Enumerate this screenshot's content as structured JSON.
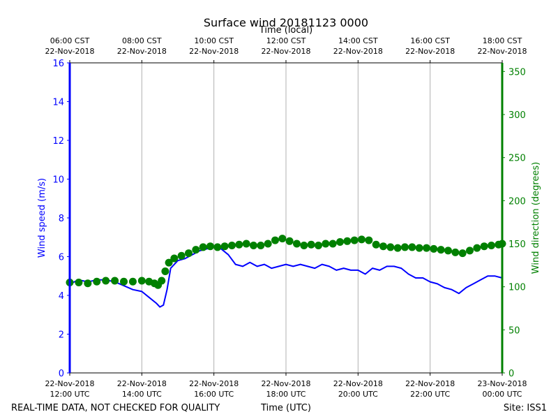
{
  "chart_data": {
    "type": "line",
    "title": "Surface wind 20181123 0000",
    "xlabel_bottom": "Time (UTC)",
    "xlabel_top": "Time (local)",
    "ylabel_left": "Wind speed (m/s)",
    "ylabel_right": "Wind direction (degrees)",
    "footer_left": "REAL-TIME DATA, NOT CHECKED FOR QUALITY",
    "footer_right": "Site: ISS1",
    "x_unit": "hours since 22-Nov-2018 12:00 UTC",
    "xlim": [
      0,
      12
    ],
    "ylim_left": [
      0,
      16
    ],
    "ylim_right": [
      0,
      360
    ],
    "grid": "vertical",
    "bottom_ticks": [
      {
        "x": 0,
        "line1": "22-Nov-2018",
        "line2": "12:00 UTC"
      },
      {
        "x": 2,
        "line1": "22-Nov-2018",
        "line2": "14:00 UTC"
      },
      {
        "x": 4,
        "line1": "22-Nov-2018",
        "line2": "16:00 UTC"
      },
      {
        "x": 6,
        "line1": "22-Nov-2018",
        "line2": "18:00 UTC"
      },
      {
        "x": 8,
        "line1": "22-Nov-2018",
        "line2": "20:00 UTC"
      },
      {
        "x": 10,
        "line1": "22-Nov-2018",
        "line2": "22:00 UTC"
      },
      {
        "x": 12,
        "line1": "23-Nov-2018",
        "line2": "00:00 UTC"
      }
    ],
    "top_ticks": [
      {
        "x": 0,
        "line1": "06:00 CST",
        "line2": "22-Nov-2018"
      },
      {
        "x": 2,
        "line1": "08:00 CST",
        "line2": "22-Nov-2018"
      },
      {
        "x": 4,
        "line1": "10:00 CST",
        "line2": "22-Nov-2018"
      },
      {
        "x": 6,
        "line1": "12:00 CST",
        "line2": "22-Nov-2018"
      },
      {
        "x": 8,
        "line1": "14:00 CST",
        "line2": "22-Nov-2018"
      },
      {
        "x": 10,
        "line1": "16:00 CST",
        "line2": "22-Nov-2018"
      },
      {
        "x": 12,
        "line1": "18:00 CST",
        "line2": "22-Nov-2018"
      }
    ],
    "left_ticks": [
      0,
      2,
      4,
      6,
      8,
      10,
      12,
      14,
      16
    ],
    "right_ticks": [
      0,
      50,
      100,
      150,
      200,
      250,
      300,
      350
    ],
    "series": [
      {
        "name": "Wind speed",
        "axis": "left",
        "color": "#0000ff",
        "style": "line",
        "points": [
          [
            0.0,
            4.6
          ],
          [
            0.25,
            4.8
          ],
          [
            0.5,
            4.7
          ],
          [
            0.75,
            4.8
          ],
          [
            1.0,
            4.8
          ],
          [
            1.25,
            4.7
          ],
          [
            1.5,
            4.5
          ],
          [
            1.75,
            4.3
          ],
          [
            2.0,
            4.2
          ],
          [
            2.2,
            3.9
          ],
          [
            2.4,
            3.6
          ],
          [
            2.5,
            3.4
          ],
          [
            2.6,
            3.5
          ],
          [
            2.7,
            4.3
          ],
          [
            2.8,
            5.4
          ],
          [
            3.0,
            5.8
          ],
          [
            3.2,
            5.9
          ],
          [
            3.4,
            6.1
          ],
          [
            3.6,
            6.3
          ],
          [
            3.8,
            6.4
          ],
          [
            4.0,
            6.5
          ],
          [
            4.2,
            6.4
          ],
          [
            4.4,
            6.1
          ],
          [
            4.6,
            5.6
          ],
          [
            4.8,
            5.5
          ],
          [
            5.0,
            5.7
          ],
          [
            5.2,
            5.5
          ],
          [
            5.4,
            5.6
          ],
          [
            5.6,
            5.4
          ],
          [
            5.8,
            5.5
          ],
          [
            6.0,
            5.6
          ],
          [
            6.2,
            5.5
          ],
          [
            6.4,
            5.6
          ],
          [
            6.6,
            5.5
          ],
          [
            6.8,
            5.4
          ],
          [
            7.0,
            5.6
          ],
          [
            7.2,
            5.5
          ],
          [
            7.4,
            5.3
          ],
          [
            7.6,
            5.4
          ],
          [
            7.8,
            5.3
          ],
          [
            8.0,
            5.3
          ],
          [
            8.2,
            5.1
          ],
          [
            8.4,
            5.4
          ],
          [
            8.6,
            5.3
          ],
          [
            8.8,
            5.5
          ],
          [
            9.0,
            5.5
          ],
          [
            9.2,
            5.4
          ],
          [
            9.4,
            5.1
          ],
          [
            9.6,
            4.9
          ],
          [
            9.8,
            4.9
          ],
          [
            10.0,
            4.7
          ],
          [
            10.2,
            4.6
          ],
          [
            10.4,
            4.4
          ],
          [
            10.6,
            4.3
          ],
          [
            10.8,
            4.1
          ],
          [
            11.0,
            4.4
          ],
          [
            11.2,
            4.6
          ],
          [
            11.4,
            4.8
          ],
          [
            11.6,
            5.0
          ],
          [
            11.8,
            5.0
          ],
          [
            12.0,
            4.9
          ]
        ]
      },
      {
        "name": "Wind direction",
        "axis": "right",
        "color": "#008000",
        "style": "markers",
        "points": [
          [
            0.0,
            105
          ],
          [
            0.25,
            105
          ],
          [
            0.5,
            104
          ],
          [
            0.75,
            106
          ],
          [
            1.0,
            107
          ],
          [
            1.25,
            107
          ],
          [
            1.5,
            106
          ],
          [
            1.75,
            106
          ],
          [
            2.0,
            107
          ],
          [
            2.2,
            106
          ],
          [
            2.35,
            104
          ],
          [
            2.45,
            102
          ],
          [
            2.55,
            107
          ],
          [
            2.65,
            118
          ],
          [
            2.75,
            128
          ],
          [
            2.9,
            133
          ],
          [
            3.1,
            136
          ],
          [
            3.3,
            139
          ],
          [
            3.5,
            143
          ],
          [
            3.7,
            146
          ],
          [
            3.9,
            147
          ],
          [
            4.1,
            146
          ],
          [
            4.3,
            147
          ],
          [
            4.5,
            148
          ],
          [
            4.7,
            149
          ],
          [
            4.9,
            150
          ],
          [
            5.1,
            148
          ],
          [
            5.3,
            148
          ],
          [
            5.5,
            150
          ],
          [
            5.7,
            154
          ],
          [
            5.9,
            156
          ],
          [
            6.1,
            153
          ],
          [
            6.3,
            150
          ],
          [
            6.5,
            148
          ],
          [
            6.7,
            149
          ],
          [
            6.9,
            148
          ],
          [
            7.1,
            150
          ],
          [
            7.3,
            150
          ],
          [
            7.5,
            152
          ],
          [
            7.7,
            153
          ],
          [
            7.9,
            154
          ],
          [
            8.1,
            155
          ],
          [
            8.3,
            154
          ],
          [
            8.5,
            149
          ],
          [
            8.7,
            147
          ],
          [
            8.9,
            146
          ],
          [
            9.1,
            145
          ],
          [
            9.3,
            146
          ],
          [
            9.5,
            146
          ],
          [
            9.7,
            145
          ],
          [
            9.9,
            145
          ],
          [
            10.1,
            144
          ],
          [
            10.3,
            143
          ],
          [
            10.5,
            142
          ],
          [
            10.7,
            140
          ],
          [
            10.9,
            139
          ],
          [
            11.1,
            142
          ],
          [
            11.3,
            145
          ],
          [
            11.5,
            147
          ],
          [
            11.7,
            148
          ],
          [
            11.9,
            149
          ],
          [
            12.0,
            150
          ]
        ]
      }
    ]
  }
}
